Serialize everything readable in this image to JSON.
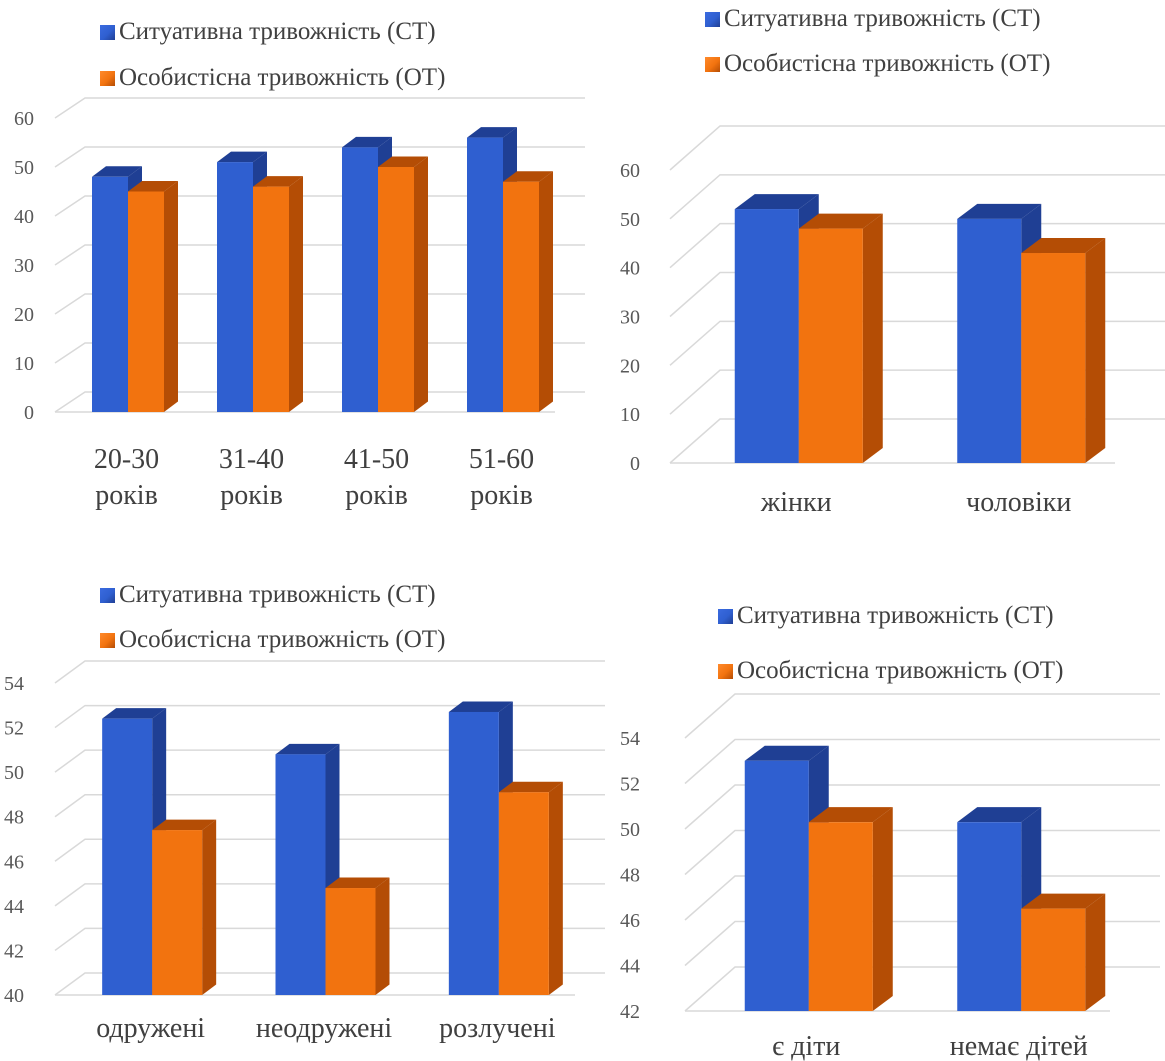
{
  "colors": {
    "st": "#2f5fd0",
    "st_side": "#1f3f94",
    "st_top": "#3a6be0",
    "ot": "#f2730f",
    "ot_side": "#b44d05",
    "ot_top": "#ff8a2c",
    "grid": "#d9d9d9"
  },
  "legend": {
    "st": "Ситуативна тривожність (СТ)",
    "ot": "Особистісна тривожність (ОТ)"
  },
  "chart_data": [
    {
      "type": "bar",
      "categories": [
        [
          "20-30",
          "років"
        ],
        [
          "31-40",
          "років"
        ],
        [
          "41-50",
          "років"
        ],
        [
          "51-60",
          "років"
        ]
      ],
      "series": [
        {
          "name": "Ситуативна тривожність (СТ)",
          "values": [
            48,
            51,
            54,
            56
          ]
        },
        {
          "name": "Особистісна тривожність (ОТ)",
          "values": [
            45,
            46,
            50,
            47
          ]
        }
      ],
      "ylim": [
        0,
        60
      ],
      "yticks": [
        "0",
        "10",
        "20",
        "30",
        "40",
        "50",
        "60"
      ],
      "legend_position": "top-left"
    },
    {
      "type": "bar",
      "categories": [
        [
          "жінки"
        ],
        [
          "чоловіки"
        ]
      ],
      "series": [
        {
          "name": "Ситуативна тривожність (СТ)",
          "values": [
            52,
            50
          ]
        },
        {
          "name": "Особистісна тривожність (ОТ)",
          "values": [
            48,
            43
          ]
        }
      ],
      "ylim": [
        0,
        60
      ],
      "yticks": [
        "0",
        "10",
        "20",
        "30",
        "40",
        "50",
        "60"
      ],
      "legend_position": "top-left"
    },
    {
      "type": "bar",
      "categories": [
        [
          "одружені"
        ],
        [
          "неодружені"
        ],
        [
          "розлучені"
        ]
      ],
      "series": [
        {
          "name": "Ситуативна тривожність (СТ)",
          "values": [
            52.4,
            50.8,
            52.7
          ]
        },
        {
          "name": "Особистісна тривожність (ОТ)",
          "values": [
            47.4,
            44.8,
            49.1
          ]
        }
      ],
      "ylim": [
        40,
        54
      ],
      "yticks": [
        "40",
        "42",
        "44",
        "46",
        "48",
        "50",
        "52",
        "54"
      ],
      "legend_position": "top-left"
    },
    {
      "type": "bar",
      "categories": [
        [
          "є діти"
        ],
        [
          "немає дітей"
        ]
      ],
      "series": [
        {
          "name": "Ситуативна тривожність (СТ)",
          "values": [
            53,
            50.3
          ]
        },
        {
          "name": "Особистісна тривожність (ОТ)",
          "values": [
            50.3,
            46.5
          ]
        }
      ],
      "ylim": [
        42,
        54
      ],
      "yticks": [
        "42",
        "44",
        "46",
        "48",
        "50",
        "52",
        "54"
      ],
      "legend_position": "top-left"
    }
  ]
}
